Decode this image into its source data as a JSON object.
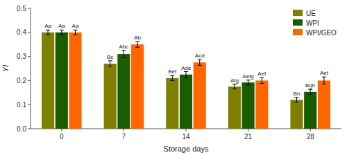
{
  "chart_data": {
    "type": "bar",
    "xlabel": "Storage days",
    "ylabel": "YI",
    "categories": [
      "0",
      "7",
      "14",
      "21",
      "28"
    ],
    "series": [
      {
        "name": "UE",
        "color": "#808000",
        "values": [
          0.4,
          0.27,
          0.21,
          0.175,
          0.12
        ],
        "errors": [
          0.01,
          0.012,
          0.01,
          0.01,
          0.01
        ],
        "labels": [
          "Aa",
          "Bc",
          "Bef",
          "Afg",
          "Bh"
        ]
      },
      {
        "name": "WPI",
        "color": "#1a5c00",
        "values": [
          0.4,
          0.31,
          0.225,
          0.192,
          0.153
        ],
        "errors": [
          0.01,
          0.015,
          0.012,
          0.01,
          0.01
        ],
        "labels": [
          "Aa",
          "Abc",
          "Ade",
          "Aefg",
          "Bgh"
        ]
      },
      {
        "name": "WPI/GEO",
        "color": "#ff6600",
        "values": [
          0.4,
          0.35,
          0.275,
          0.2,
          0.2
        ],
        "errors": [
          0.01,
          0.012,
          0.012,
          0.012,
          0.015
        ],
        "labels": [
          "Aa",
          "Ab",
          "Acd",
          "Aef",
          "Aef"
        ]
      }
    ],
    "ylim": [
      0.0,
      0.5
    ],
    "yticks": [
      {
        "value": 0.0,
        "label": "0.0"
      },
      0.1,
      0.2,
      0.3,
      0.4,
      0.5
    ],
    "grid": false,
    "legend": "upper right"
  }
}
